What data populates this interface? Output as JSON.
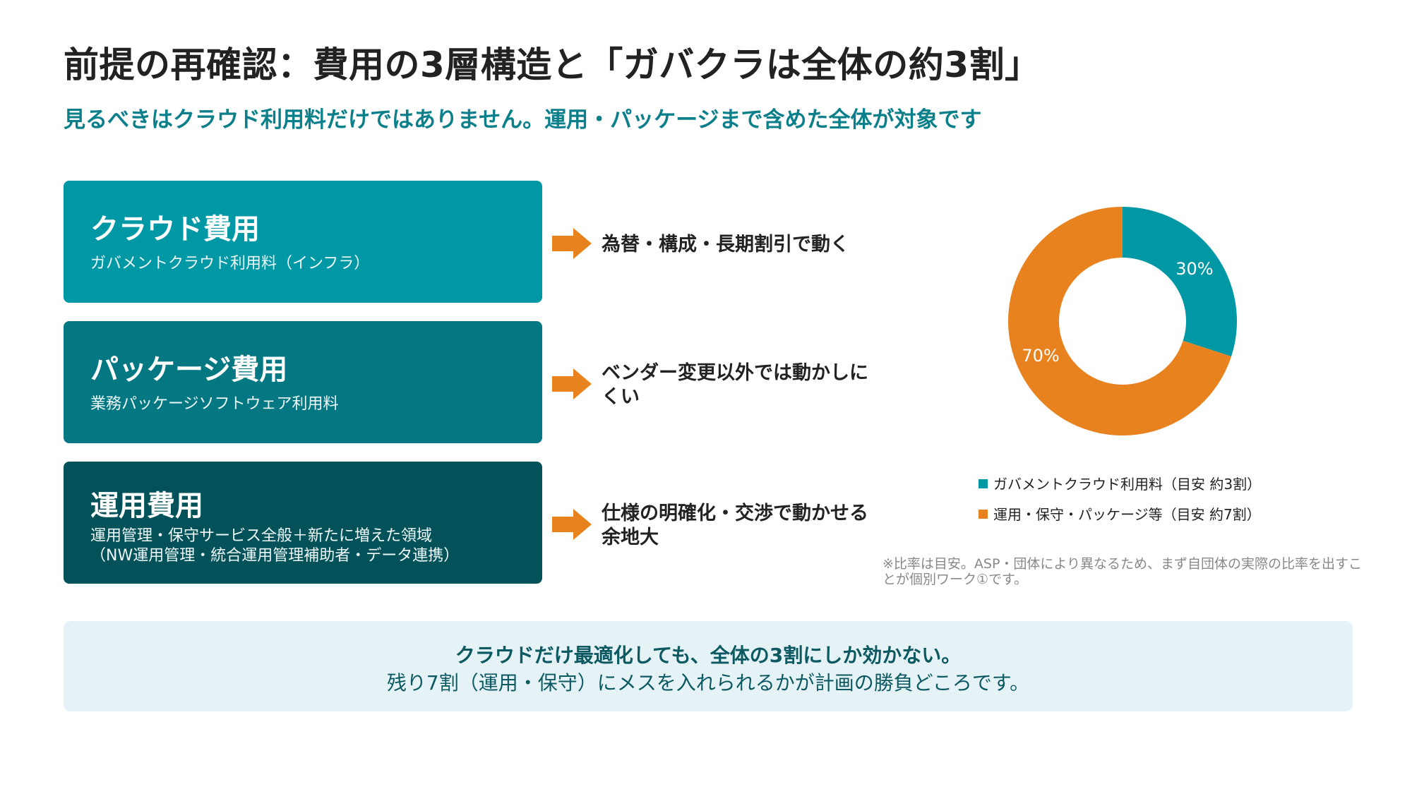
{
  "title": "前提の再確認：費用の3層構造と「ガバクラは全体の約3割」",
  "subtitle": "見るべきはクラウド利用料だけではありません。運用・パッケージまで含めた全体が対象です",
  "cards": [
    {
      "name": "クラウド費用",
      "desc_lines": [
        "ガバメントクラウド利用料（インフラ）"
      ],
      "color": "#0198a5",
      "effect": "為替・構成・長期割引で動く"
    },
    {
      "name": "パッケージ費用",
      "desc_lines": [
        "業務パッケージソフトウェア利用料"
      ],
      "color": "#047882",
      "effect": "ベンダー変更以外では動かしにくい"
    },
    {
      "name": "運用費用",
      "desc_lines": [
        "運用管理・保守サービス全般＋新たに増えた領域",
        "（NW運用管理・統合運用管理補助者・データ連携）"
      ],
      "color": "#035259",
      "effect": "仕様の明確化・交渉で動かせる余地大"
    }
  ],
  "arrow_color": "#e8821e",
  "chart_data": {
    "type": "pie",
    "donut": true,
    "categories": [
      "ガバメントクラウド利用料（目安 約3割）",
      "運用・保守・パッケージ等（目安 約7割）"
    ],
    "values": [
      30,
      70
    ],
    "data_labels": [
      "30%",
      "70%"
    ],
    "colors": [
      "#0198a5",
      "#e8821e"
    ],
    "legend_position": "bottom"
  },
  "note": "※比率は目安。ASP・団体により異なるため、まず自団体の実際の比率を出すことが個別ワーク①です。",
  "bottom": {
    "line1": "クラウドだけ最適化しても、全体の3割にしか効かない。",
    "line2": "残り7割（運用・保守）にメスを入れられるかが計画の勝負どころです。"
  }
}
